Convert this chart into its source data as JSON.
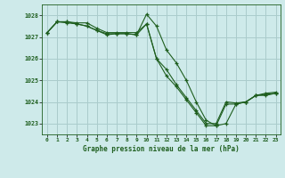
{
  "title": "Graphe pression niveau de la mer (hPa)",
  "bg_color": "#ceeaea",
  "grid_color": "#aacccc",
  "line_color": "#1e5e1e",
  "ylim": [
    1022.5,
    1028.5
  ],
  "xlim": [
    -0.5,
    23.5
  ],
  "yticks": [
    1023,
    1024,
    1025,
    1026,
    1027,
    1028
  ],
  "xticks": [
    0,
    1,
    2,
    3,
    4,
    5,
    6,
    7,
    8,
    9,
    10,
    11,
    12,
    13,
    14,
    15,
    16,
    17,
    18,
    19,
    20,
    21,
    22,
    23
  ],
  "series1_x": [
    0,
    1,
    2,
    3,
    4,
    5,
    6,
    7,
    8,
    9,
    10,
    11,
    12,
    13,
    14,
    15,
    16,
    17,
    18,
    19,
    20,
    21,
    22,
    23
  ],
  "series1_y": [
    1027.2,
    1027.7,
    1027.7,
    1027.65,
    1027.65,
    1027.4,
    1027.2,
    1027.2,
    1027.2,
    1027.2,
    1027.6,
    1026.0,
    1025.2,
    1024.7,
    1024.1,
    1023.5,
    1022.9,
    1022.9,
    1023.9,
    1023.9,
    1024.0,
    1024.3,
    1024.3,
    1024.4
  ],
  "series2_x": [
    0,
    1,
    2,
    3,
    4,
    5,
    6,
    7,
    8,
    9,
    10,
    11,
    12,
    13,
    14,
    15,
    16,
    17,
    18,
    19,
    20,
    21,
    22,
    23
  ],
  "series2_y": [
    1027.2,
    1027.7,
    1027.7,
    1027.6,
    1027.5,
    1027.3,
    1027.15,
    1027.15,
    1027.15,
    1027.1,
    1028.05,
    1027.5,
    1026.4,
    1025.8,
    1025.0,
    1024.0,
    1023.15,
    1022.9,
    1023.0,
    1023.9,
    1024.0,
    1024.3,
    1024.4,
    1024.45
  ],
  "series3_x": [
    0,
    1,
    2,
    3,
    4,
    5,
    6,
    7,
    8,
    9,
    10,
    11,
    12,
    13,
    14,
    15,
    16,
    17,
    18,
    19,
    20,
    21,
    22,
    23
  ],
  "series3_y": [
    1027.2,
    1027.7,
    1027.65,
    1027.6,
    1027.5,
    1027.3,
    1027.1,
    1027.15,
    1027.15,
    1027.1,
    1027.6,
    1026.0,
    1025.5,
    1024.8,
    1024.2,
    1023.6,
    1023.0,
    1023.0,
    1024.0,
    1023.95,
    1024.0,
    1024.3,
    1024.35,
    1024.4
  ]
}
